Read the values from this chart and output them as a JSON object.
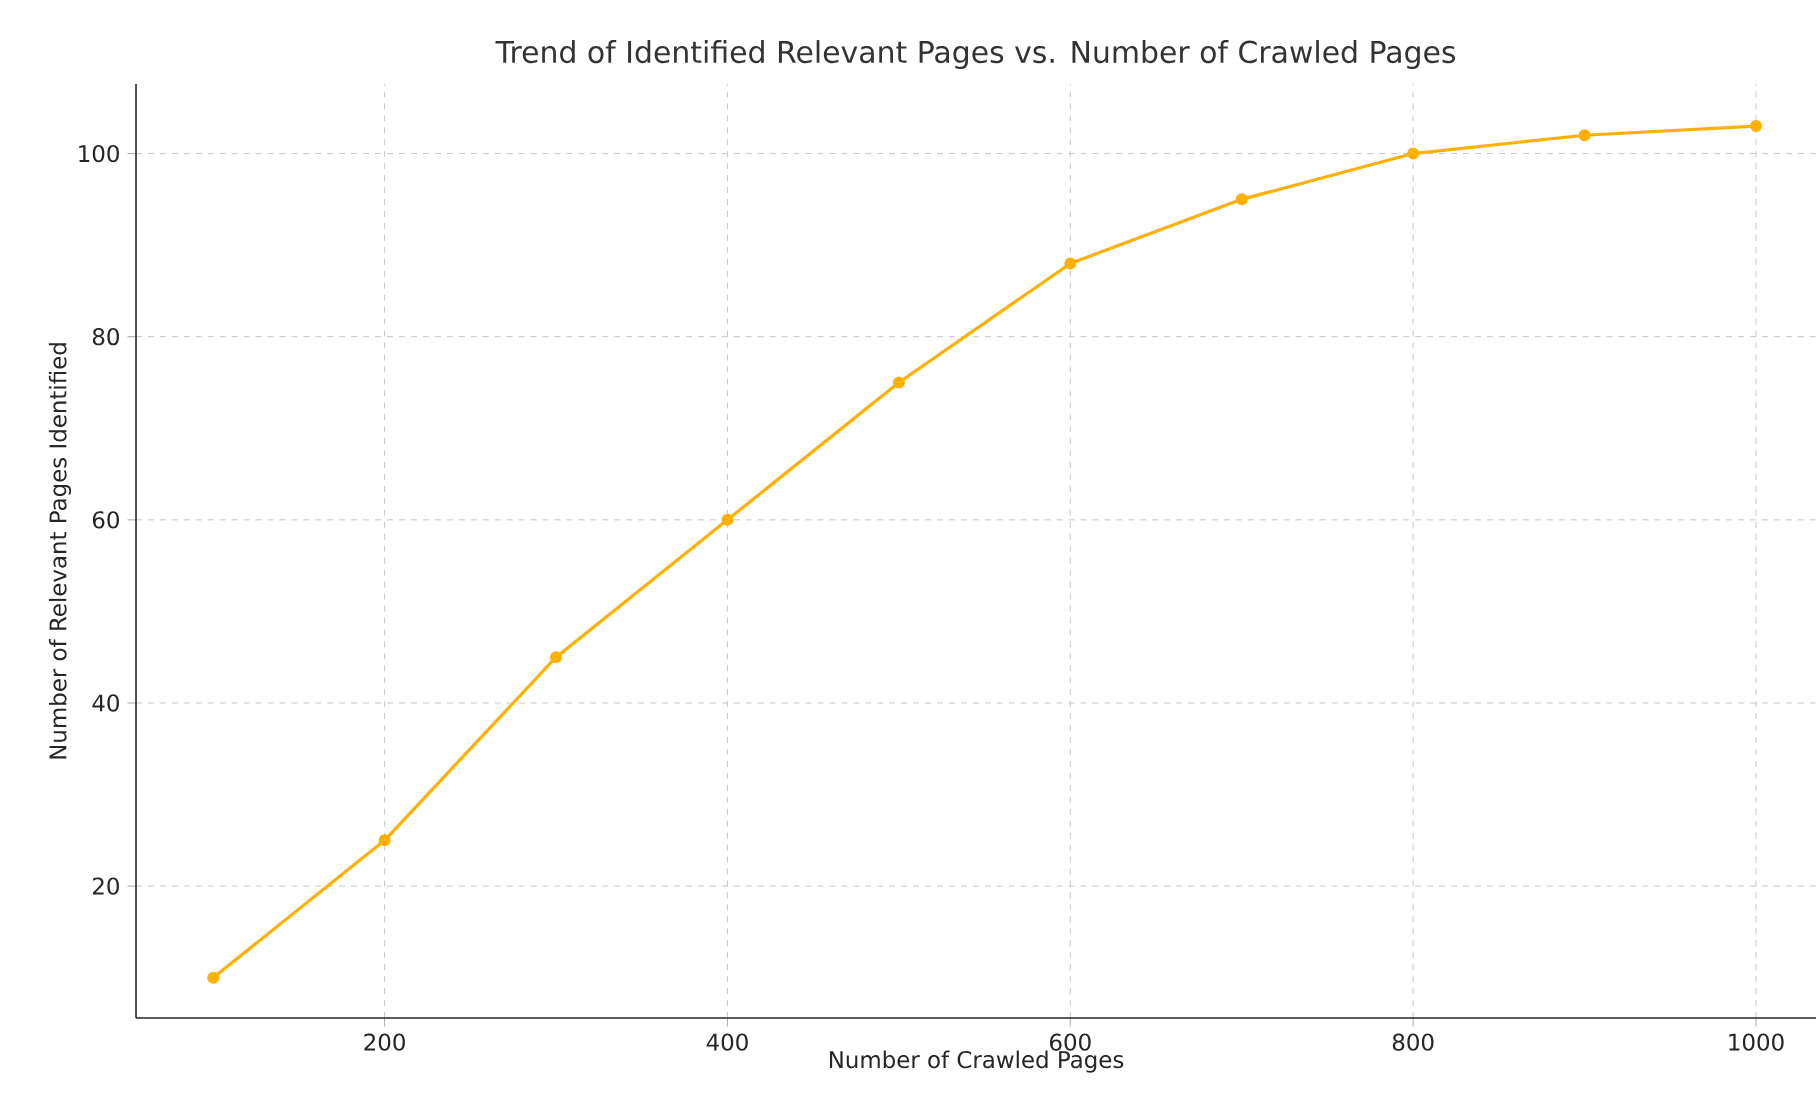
{
  "chart_data": {
    "type": "line",
    "title": "Trend of Identified Relevant Pages vs. Number of Crawled Pages",
    "xlabel": "Number of Crawled Pages",
    "ylabel": "Number of Relevant Pages Identified",
    "x": [
      100,
      200,
      300,
      400,
      500,
      600,
      700,
      800,
      900,
      1000
    ],
    "series": [
      {
        "color": "#ffb000",
        "values": [
          10,
          25,
          45,
          60,
          75,
          88,
          95,
          100,
          102,
          103
        ]
      }
    ],
    "xlim": [
      55,
      1035
    ],
    "ylim": [
      5.6,
      107.6
    ],
    "xticks": [
      200,
      400,
      600,
      800,
      1000
    ],
    "yticks": [
      20,
      40,
      60,
      80,
      100
    ],
    "grid": true,
    "marker": "circle",
    "line_style": "solid"
  }
}
